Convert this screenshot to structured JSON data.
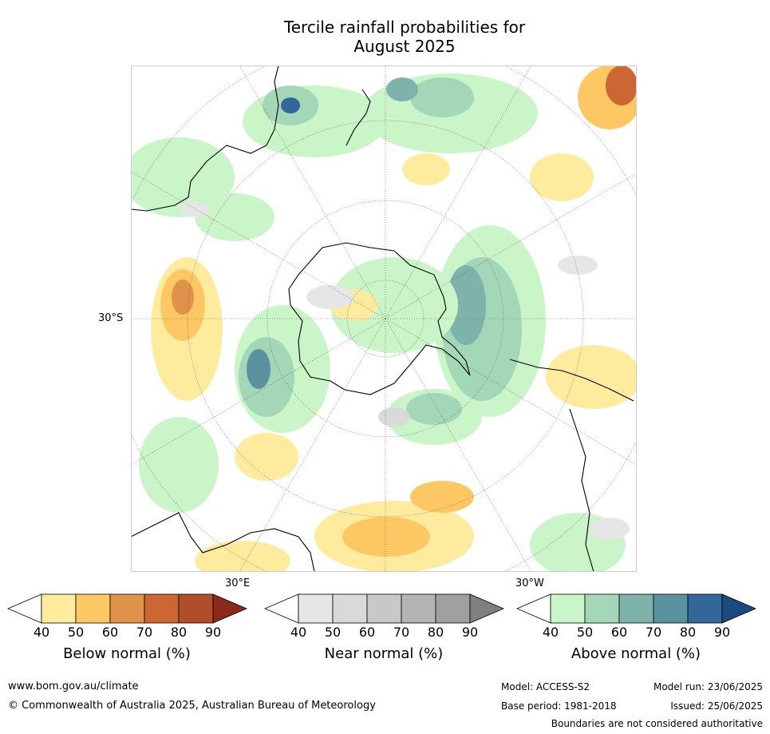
{
  "title": {
    "line1": "Tercile rainfall probabilities for",
    "line2": "August 2025"
  },
  "map": {
    "projection": "south polar stereographic",
    "labels": {
      "lat": "30°S",
      "lon_east": "30°E",
      "lon_west": "30°W"
    }
  },
  "colorbars": [
    {
      "label": "Below normal (%)",
      "ticks": [
        "40",
        "50",
        "60",
        "70",
        "80",
        "90"
      ],
      "colors": [
        "#ffffff",
        "#feeb9e",
        "#fdc864",
        "#e0924b",
        "#cc6633",
        "#b04d2a",
        "#8b2a1a"
      ]
    },
    {
      "label": "Near normal (%)",
      "ticks": [
        "40",
        "50",
        "60",
        "70",
        "80",
        "90"
      ],
      "colors": [
        "#ffffff",
        "#e6e6e6",
        "#d9d9d9",
        "#c8c8c8",
        "#b4b4b4",
        "#a0a0a0",
        "#808080"
      ]
    },
    {
      "label": "Above normal (%)",
      "ticks": [
        "40",
        "50",
        "60",
        "70",
        "80",
        "90"
      ],
      "colors": [
        "#ffffff",
        "#c9f5c9",
        "#a3d7b8",
        "#7db3aa",
        "#5b92a0",
        "#336699",
        "#1a4a80"
      ]
    }
  ],
  "footer": {
    "website": "www.bom.gov.au/climate",
    "copyright": "© Commonwealth of Australia 2025, Australian Bureau of Meteorology",
    "model": "Model: ACCESS-S2",
    "base_period": "Base period: 1981-2018",
    "model_run": "Model run: 23/06/2025",
    "issued": "Issued: 25/06/2025",
    "disclaimer": "Boundaries are not considered authoritative"
  }
}
